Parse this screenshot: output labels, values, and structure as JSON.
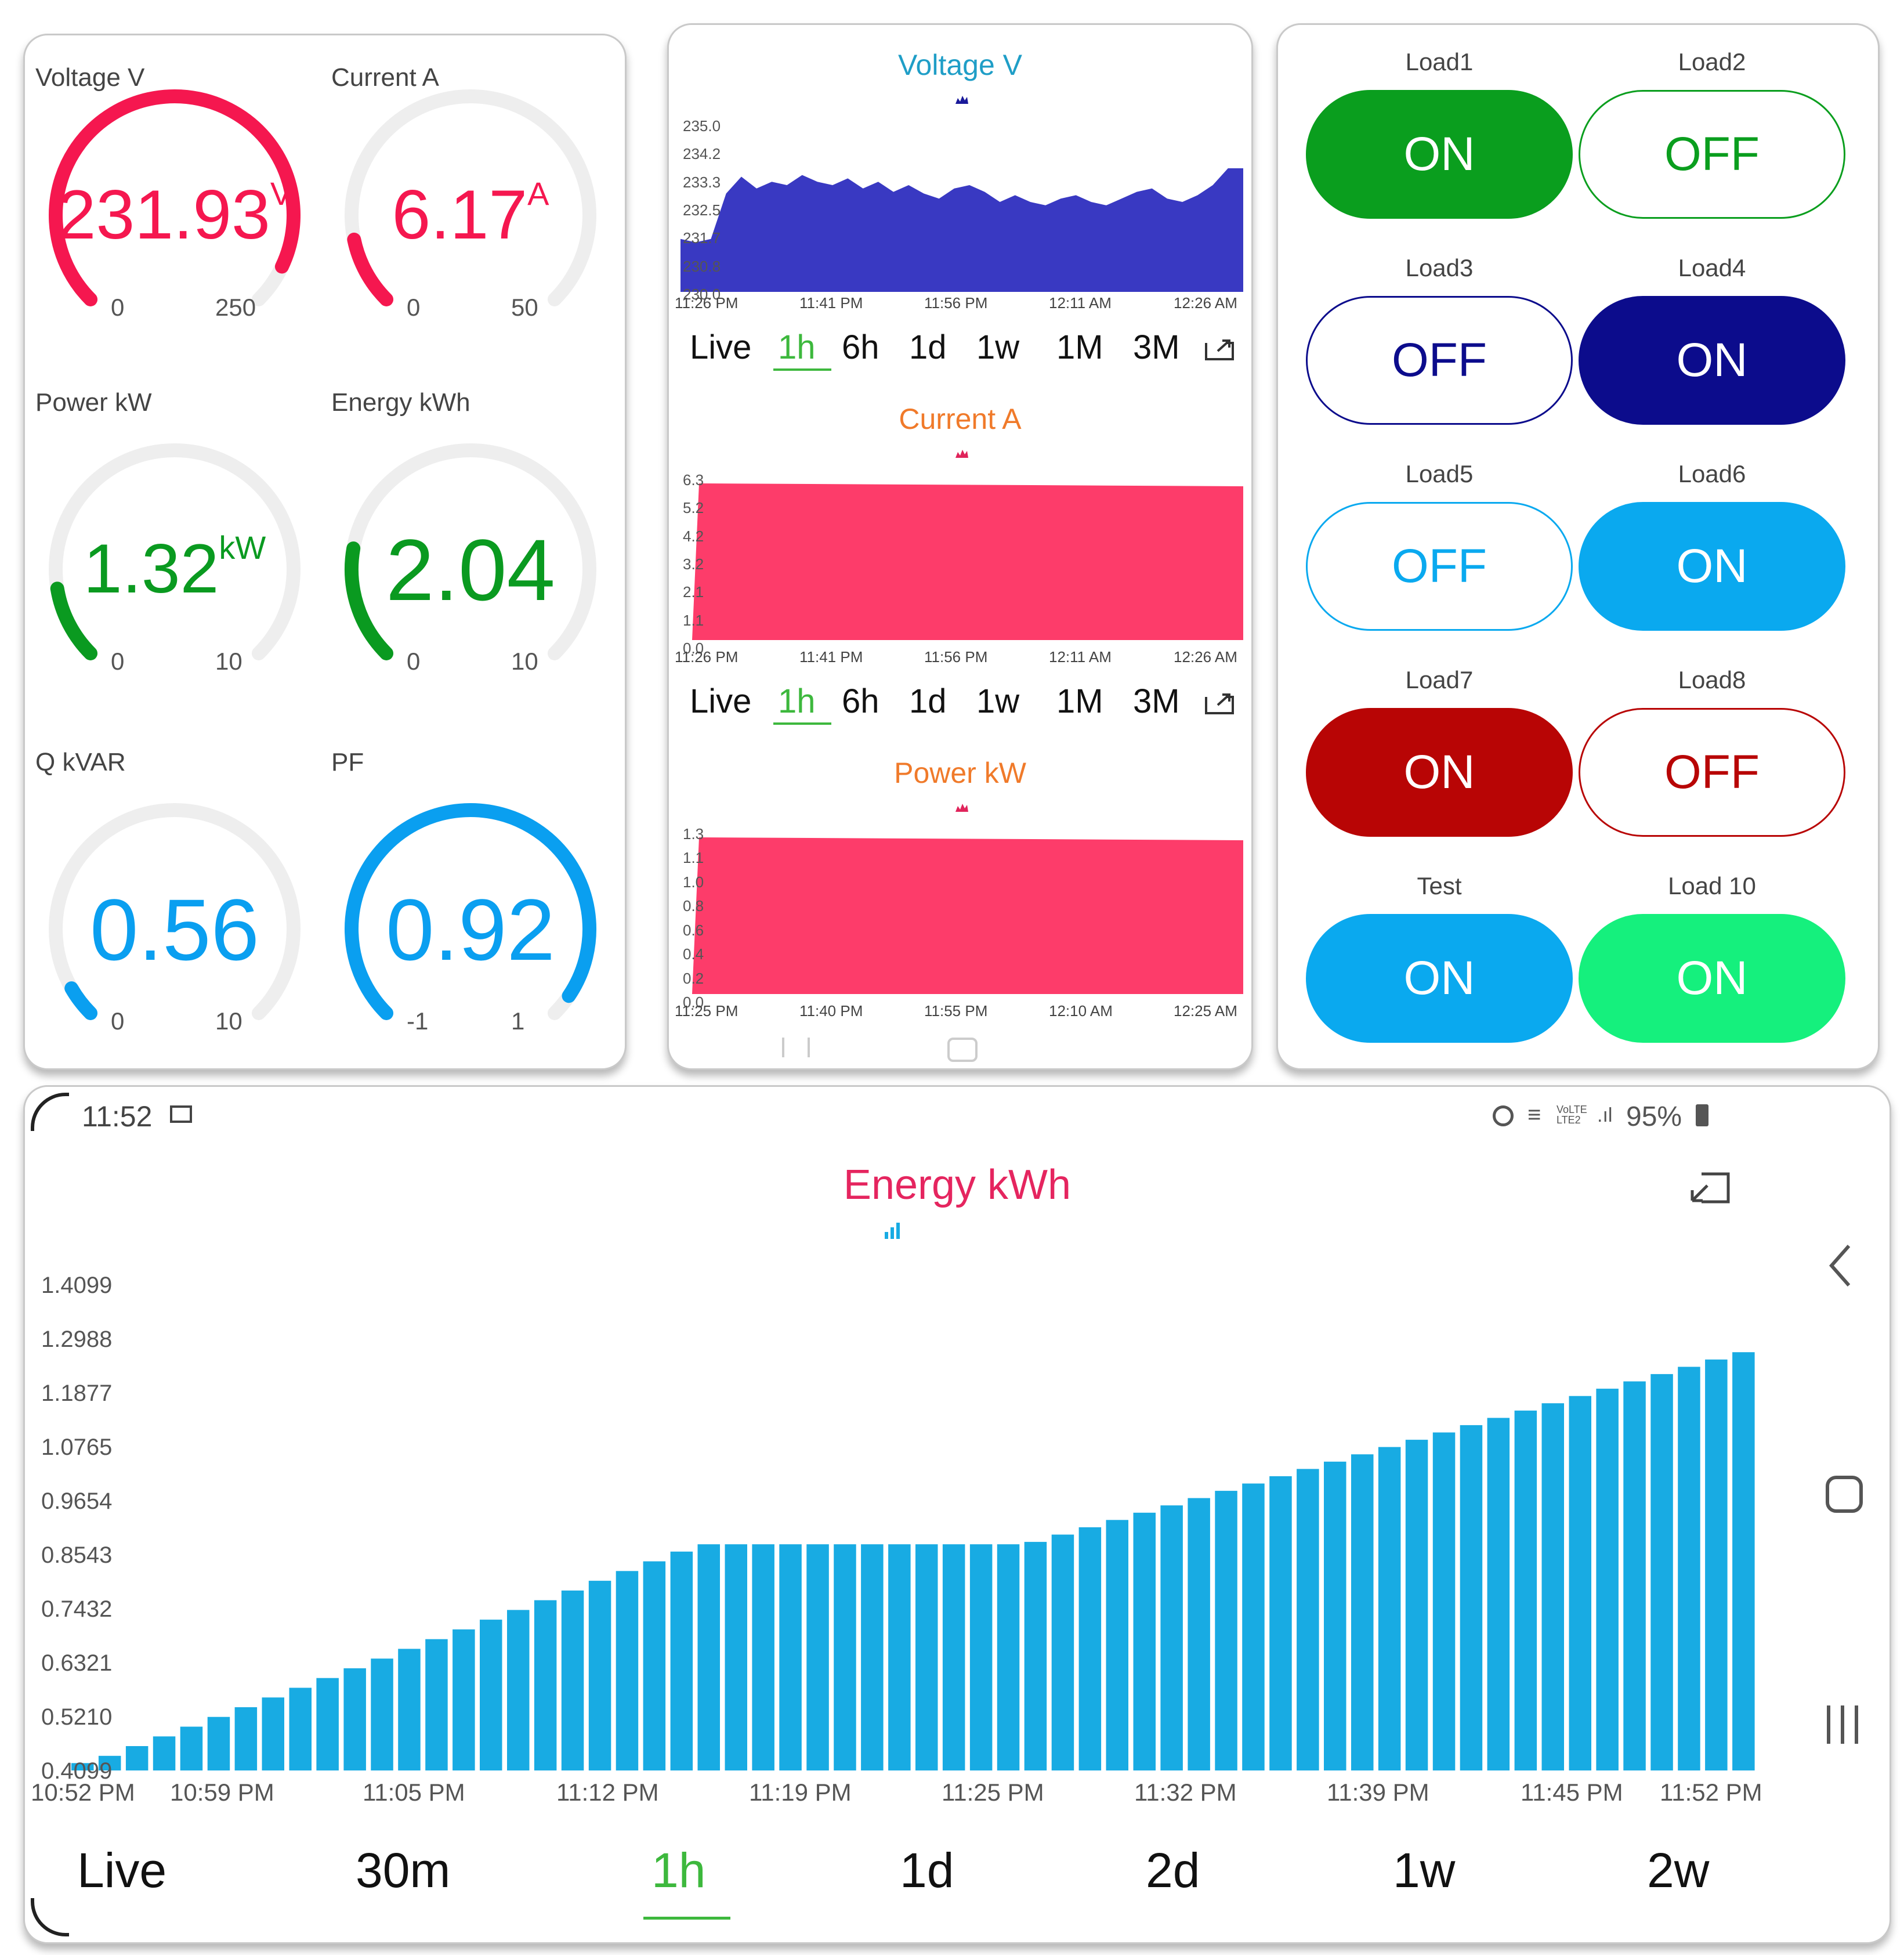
{
  "gauges": [
    {
      "label": "Voltage V",
      "value": "231.93",
      "unit": "V",
      "min": "0",
      "max": "250",
      "fraction": 0.928,
      "color": "#f5174f"
    },
    {
      "label": "Current A",
      "value": "6.17",
      "unit": "A",
      "min": "0",
      "max": "50",
      "fraction": 0.123,
      "color": "#f5174f"
    },
    {
      "label": "Power kW",
      "value": "1.32",
      "unit": "kW",
      "min": "0",
      "max": "10",
      "fraction": 0.132,
      "color": "#0a9a20"
    },
    {
      "label": "Energy kWh",
      "value": "2.04",
      "unit": "",
      "min": "0",
      "max": "10",
      "fraction": 0.204,
      "color": "#0a9a20"
    },
    {
      "label": "Q kVAR",
      "value": "0.56",
      "unit": "",
      "min": "0",
      "max": "10",
      "fraction": 0.056,
      "color": "#0a9ff0"
    },
    {
      "label": "PF",
      "value": "0.92",
      "unit": "",
      "min": "-1",
      "max": "1",
      "fraction": 0.96,
      "color": "#0a9ff0"
    }
  ],
  "mini_charts": [
    {
      "title": "Voltage V",
      "title_color": "#1f9ec7",
      "fill": "#3939c2",
      "icon_color": "#1a1a9a",
      "y_ticks": [
        "235.0",
        "234.2",
        "233.3",
        "232.5",
        "231.7",
        "230.8",
        "230.0"
      ],
      "x_ticks": [
        "11:26 PM",
        "11:41 PM",
        "11:56 PM",
        "12:11 AM",
        "12:26 AM"
      ],
      "ranges": [
        "Live",
        "1h",
        "6h",
        "1d",
        "1w",
        "1M",
        "3M"
      ],
      "selected": "1h"
    },
    {
      "title": "Current A",
      "title_color": "#f07a2a",
      "fill": "#fd3c6a",
      "icon_color": "#e0245b",
      "y_ticks": [
        "6.3",
        "5.2",
        "4.2",
        "3.2",
        "2.1",
        "1.1",
        "0.0"
      ],
      "x_ticks": [
        "11:26 PM",
        "11:41 PM",
        "11:56 PM",
        "12:11 AM",
        "12:26 AM"
      ],
      "ranges": [
        "Live",
        "1h",
        "6h",
        "1d",
        "1w",
        "1M",
        "3M"
      ],
      "selected": "1h"
    },
    {
      "title": "Power kW",
      "title_color": "#f07a2a",
      "fill": "#fd3c6a",
      "icon_color": "#e0245b",
      "y_ticks": [
        "1.3",
        "1.1",
        "1.0",
        "0.8",
        "0.6",
        "0.4",
        "0.2",
        "0.0"
      ],
      "x_ticks": [
        "11:25 PM",
        "11:40 PM",
        "11:55 PM",
        "12:10 AM",
        "12:25 AM"
      ]
    }
  ],
  "loads": [
    {
      "label": "Load1",
      "state": "ON",
      "on": true,
      "color": "#0a9e1e"
    },
    {
      "label": "Load2",
      "state": "OFF",
      "on": false,
      "color": "#0a9e1e"
    },
    {
      "label": "Load3",
      "state": "OFF",
      "on": false,
      "color": "#0c0c8c"
    },
    {
      "label": "Load4",
      "state": "ON",
      "on": true,
      "color": "#0c0c8c"
    },
    {
      "label": "Load5",
      "state": "OFF",
      "on": false,
      "color": "#0aa9ef"
    },
    {
      "label": "Load6",
      "state": "ON",
      "on": true,
      "color": "#0aa9ef"
    },
    {
      "label": "Load7",
      "state": "ON",
      "on": true,
      "color": "#b80505"
    },
    {
      "label": "Load8",
      "state": "OFF",
      "on": false,
      "color": "#b80505"
    },
    {
      "label": "Test",
      "state": "ON",
      "on": true,
      "color": "#0aa9ef"
    },
    {
      "label": "Load 10",
      "state": "ON",
      "on": true,
      "color": "#15f07d"
    }
  ],
  "status_bar": {
    "time": "11:52",
    "battery": "95%",
    "network": "VoLTE LTE2"
  },
  "energy_chart": {
    "title": "Energy kWh",
    "ranges": [
      "Live",
      "30m",
      "1h",
      "1d",
      "2d",
      "1w",
      "2w"
    ],
    "selected": "1h",
    "chart_data": {
      "type": "bar",
      "title": "Energy kWh",
      "color": "#18abe3",
      "y_ticks": [
        "1.4099",
        "1.2988",
        "1.1877",
        "1.0765",
        "0.9654",
        "0.8543",
        "0.7432",
        "0.6321",
        "0.5210",
        "0.4099"
      ],
      "ylim": [
        0.4099,
        1.4099
      ],
      "x_ticks": [
        "10:52 PM",
        "10:59 PM",
        "11:05 PM",
        "11:12 PM",
        "11:19 PM",
        "11:25 PM",
        "11:32 PM",
        "11:39 PM",
        "11:45 PM",
        "11:52 PM"
      ],
      "values": [
        0.425,
        0.44,
        0.46,
        0.48,
        0.5,
        0.52,
        0.54,
        0.56,
        0.58,
        0.6,
        0.62,
        0.64,
        0.66,
        0.68,
        0.7,
        0.72,
        0.74,
        0.76,
        0.78,
        0.8,
        0.82,
        0.84,
        0.86,
        0.875,
        0.875,
        0.875,
        0.875,
        0.875,
        0.875,
        0.875,
        0.875,
        0.875,
        0.875,
        0.875,
        0.875,
        0.88,
        0.895,
        0.91,
        0.925,
        0.94,
        0.955,
        0.97,
        0.985,
        1.0,
        1.015,
        1.03,
        1.045,
        1.06,
        1.075,
        1.09,
        1.105,
        1.12,
        1.135,
        1.15,
        1.165,
        1.18,
        1.195,
        1.21,
        1.225,
        1.24,
        1.255,
        1.27
      ]
    }
  }
}
